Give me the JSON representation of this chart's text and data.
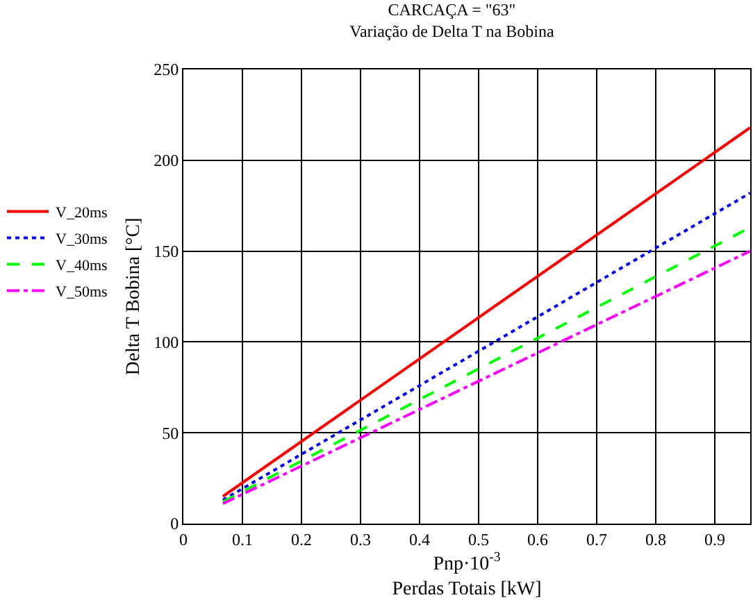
{
  "chart_data": {
    "type": "line",
    "title": "CARCAÇA = \"63\"",
    "subtitle": "Variação de Delta T na Bobina",
    "xlabel": "Pnp·10$^{-3}$\nPerdas Totais [kW]",
    "ylabel": "Delta T Bobina [°C]",
    "x": [
      0.067,
      0.96
    ],
    "series": [
      {
        "name": "V_20ms",
        "color": "#ff0000",
        "line_style": "solid",
        "values": [
          15,
          218
        ]
      },
      {
        "name": "V_30ms",
        "color": "#0000ff",
        "line_style": "dotted",
        "values": [
          13,
          182
        ]
      },
      {
        "name": "V_40ms",
        "color": "#00ff00",
        "line_style": "dashed",
        "values": [
          12,
          163
        ]
      },
      {
        "name": "V_50ms",
        "color": "#ff00ff",
        "line_style": "dashdot",
        "values": [
          11,
          150
        ]
      }
    ],
    "xlim": [
      0,
      0.96
    ],
    "xticks": [
      0,
      0.1,
      0.2,
      0.3,
      0.4,
      0.5,
      0.6,
      0.7,
      0.8,
      0.9
    ],
    "ylim": [
      0,
      250
    ],
    "yticks": [
      0,
      50,
      100,
      150,
      200,
      250
    ],
    "grid": true,
    "legend": "left",
    "marker": "none"
  }
}
